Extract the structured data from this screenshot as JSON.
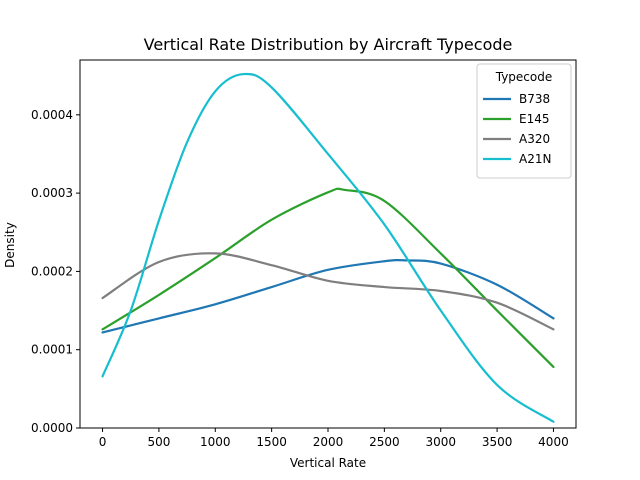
{
  "chart_data": {
    "type": "line",
    "title": "Vertical Rate Distribution by Aircraft Typecode",
    "xlabel": "Vertical Rate",
    "ylabel": "Density",
    "xlim": [
      -200,
      4200
    ],
    "ylim": [
      0,
      0.00047
    ],
    "xticks": [
      0,
      500,
      1000,
      1500,
      2000,
      2500,
      3000,
      3500,
      4000
    ],
    "yticks": [
      0.0,
      0.0001,
      0.0002,
      0.0003,
      0.0004
    ],
    "ytick_labels": [
      "0.0000",
      "0.0001",
      "0.0002",
      "0.0003",
      "0.0004"
    ],
    "legend": {
      "title": "Typecode",
      "placement": "top-right"
    },
    "grid": false,
    "series": [
      {
        "name": "B738",
        "color": "#1f77b4",
        "x": [
          0,
          500,
          1000,
          1500,
          2000,
          2500,
          2700,
          3000,
          3500,
          4000
        ],
        "y": [
          0.000122,
          0.00014,
          0.000158,
          0.00018,
          0.000202,
          0.000213,
          0.000214,
          0.00021,
          0.000183,
          0.00014
        ]
      },
      {
        "name": "E145",
        "color": "#2ca02c",
        "x": [
          0,
          500,
          1000,
          1500,
          2000,
          2150,
          2500,
          3000,
          3500,
          4000
        ],
        "y": [
          0.000126,
          0.00017,
          0.000217,
          0.000266,
          0.000301,
          0.000304,
          0.00029,
          0.000223,
          0.00015,
          7.8e-05
        ]
      },
      {
        "name": "A320",
        "color": "#7f7f7f",
        "x": [
          0,
          500,
          1000,
          1500,
          2000,
          2500,
          3000,
          3500,
          4000
        ],
        "y": [
          0.000166,
          0.000212,
          0.000223,
          0.000208,
          0.000188,
          0.00018,
          0.000175,
          0.00016,
          0.000126
        ]
      },
      {
        "name": "A21N",
        "color": "#17becf",
        "x": [
          0,
          250,
          500,
          750,
          1000,
          1250,
          1500,
          2000,
          2500,
          3000,
          3500,
          4000
        ],
        "y": [
          6.6e-05,
          0.00015,
          0.000265,
          0.000365,
          0.00043,
          0.000452,
          0.000435,
          0.00035,
          0.00026,
          0.00015,
          5.5e-05,
          8e-06
        ]
      }
    ]
  }
}
